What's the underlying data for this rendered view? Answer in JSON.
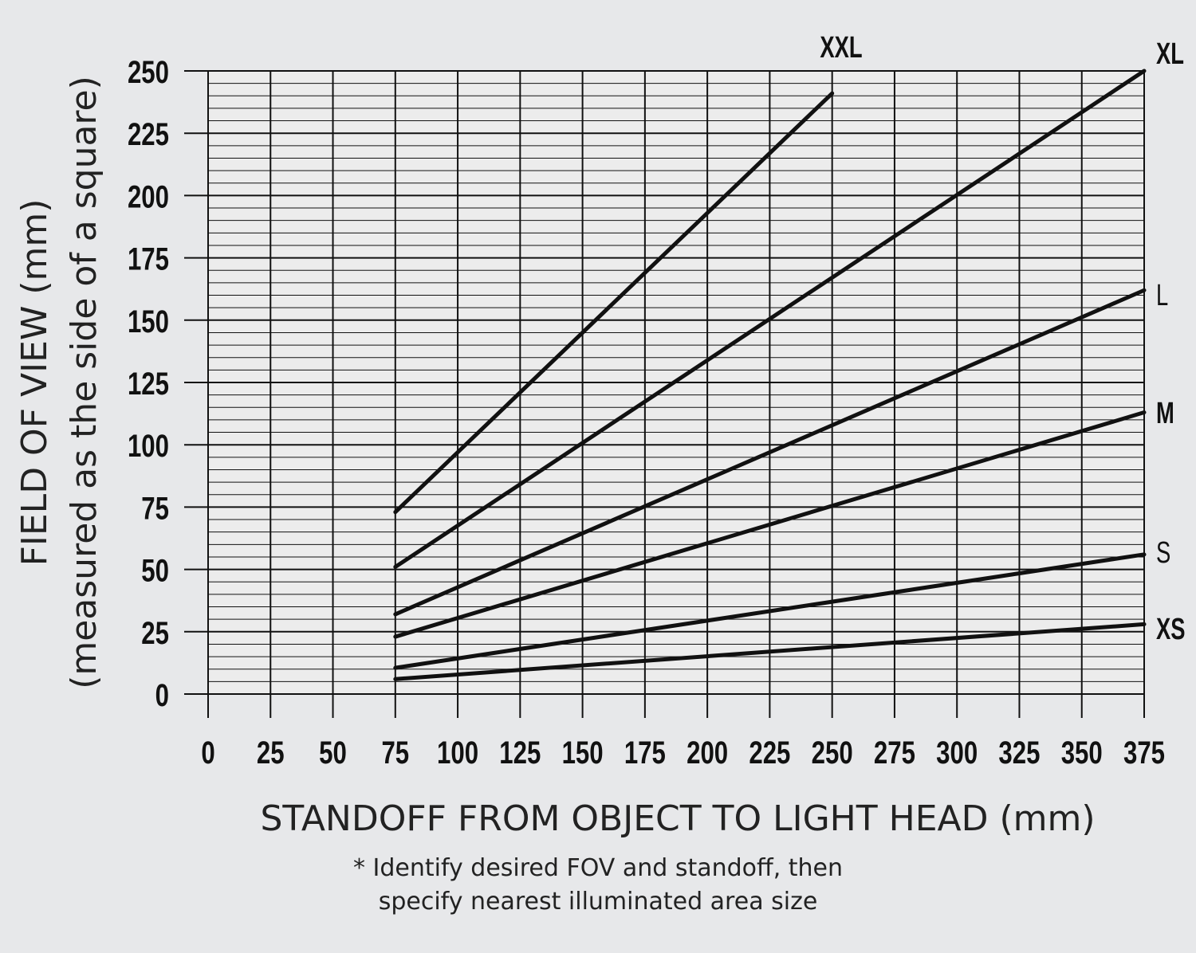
{
  "chart_data": {
    "type": "line",
    "xlabel": "STANDOFF FROM OBJECT TO LIGHT HEAD (mm)",
    "ylabel_line1": "FIELD OF VIEW (mm)",
    "ylabel_line2": "(measured as the side of a square)",
    "xlim": [
      0,
      375
    ],
    "ylim": [
      0,
      250
    ],
    "x_ticks": [
      "0",
      "25",
      "50",
      "75",
      "100",
      "125",
      "150",
      "175",
      "200",
      "225",
      "250",
      "275",
      "300",
      "325",
      "350",
      "375"
    ],
    "y_ticks": [
      "0",
      "25",
      "50",
      "75",
      "100",
      "125",
      "150",
      "175",
      "200",
      "225",
      "250"
    ],
    "grid": true,
    "series": [
      {
        "name": "XXL",
        "label_style": "bold",
        "x": [
          75,
          250
        ],
        "y": [
          73,
          241
        ]
      },
      {
        "name": "XL",
        "label_style": "bold",
        "x": [
          75,
          375
        ],
        "y": [
          51,
          250
        ]
      },
      {
        "name": "L",
        "label_style": "light",
        "x": [
          75,
          375
        ],
        "y": [
          32,
          162
        ]
      },
      {
        "name": "M",
        "label_style": "bold",
        "x": [
          75,
          375
        ],
        "y": [
          23,
          113
        ]
      },
      {
        "name": "S",
        "label_style": "light",
        "x": [
          75,
          375
        ],
        "y": [
          10.5,
          56
        ]
      },
      {
        "name": "XS",
        "label_style": "bold",
        "x": [
          75,
          375
        ],
        "y": [
          6,
          28
        ]
      }
    ]
  },
  "footnote": {
    "line1": "* Identify desired FOV and standoff, then",
    "line2": "specify nearest illuminated area size"
  }
}
